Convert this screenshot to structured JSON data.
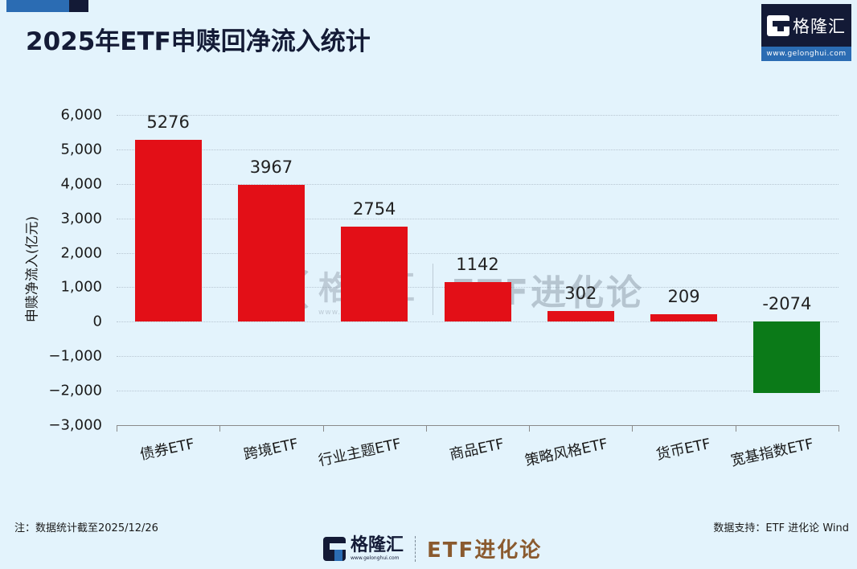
{
  "header": {
    "title": "2025年ETF申赎回净流入统计",
    "brand_name": "格隆汇",
    "brand_url": "www.gelonghui.com"
  },
  "chart_data": {
    "type": "bar",
    "title": "2025年ETF申赎回净流入统计",
    "xlabel": "",
    "ylabel": "申赎净流入(亿元)",
    "ylim": [
      -3000,
      6000
    ],
    "yticks": [
      6000,
      5000,
      4000,
      3000,
      2000,
      1000,
      0,
      -1000,
      -2000,
      -3000
    ],
    "ytick_labels": [
      "6,000",
      "5,000",
      "4,000",
      "3,000",
      "2,000",
      "1,000",
      "0",
      "−1,000",
      "−2,000",
      "−3,000"
    ],
    "grid": true,
    "legend": null,
    "categories": [
      "债券ETF",
      "跨境ETF",
      "行业主题ETF",
      "商品ETF",
      "策略风格ETF",
      "货币ETF",
      "宽基指数ETF"
    ],
    "values": [
      5276,
      3967,
      2754,
      1142,
      302,
      209,
      -2074
    ],
    "data_labels": [
      "5276",
      "3967",
      "2754",
      "1142",
      "302",
      "209",
      "-2074"
    ],
    "colors": {
      "positive": "#e30f17",
      "negative": "#0b7a18"
    }
  },
  "watermark": {
    "brand_name": "格隆汇",
    "brand_url": "www.gelonghui.com",
    "column_name": "ETF进化论"
  },
  "footer": {
    "note": "注：数据统计截至2025/12/26",
    "source": "数据支持：ETF 进化论 Wind",
    "logo_name": "格隆汇",
    "logo_url": "www.gelonghui.com",
    "logo_column": "ETF进化论"
  },
  "colors": {
    "background": "#e3f3fc",
    "title": "#141b36",
    "brand_dark": "#131a36",
    "brand_blue": "#2b6cb3",
    "column_brown": "#8a5a2e"
  }
}
